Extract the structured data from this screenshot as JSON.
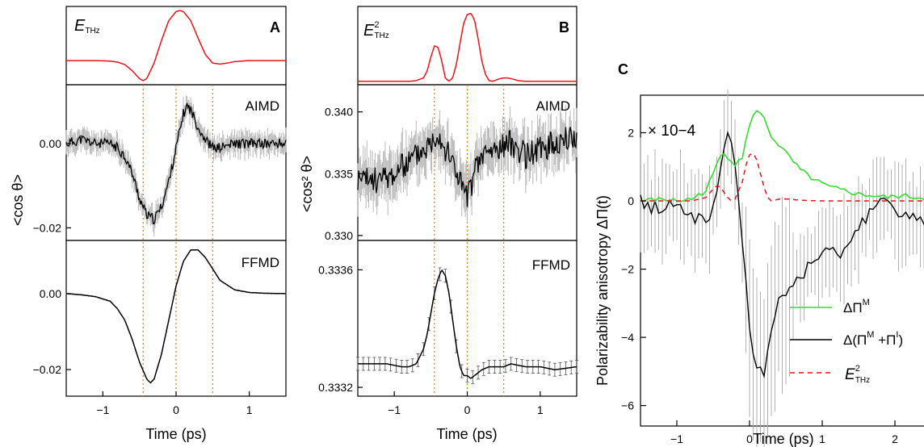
{
  "chart_data": [
    {
      "panel": "A",
      "type": "line",
      "xlabel": "Time (ps)",
      "ylabel": "<cos θ>",
      "xlim": [
        -1.5,
        1.5
      ],
      "xticks": [
        -1,
        0,
        1
      ],
      "xtick_labels": [
        "−1",
        "0",
        "1"
      ],
      "marker_lines": [
        -0.45,
        0.0,
        0.5
      ],
      "subplots": [
        {
          "name": "E_THz",
          "label_main": "E",
          "label_sub": "THz",
          "color": "#e8141a",
          "ylim": [
            -0.45,
            1.05
          ],
          "x": [
            -1.5,
            -1.3,
            -1.1,
            -0.9,
            -0.8,
            -0.7,
            -0.6,
            -0.5,
            -0.45,
            -0.4,
            -0.3,
            -0.2,
            -0.1,
            0.0,
            0.05,
            0.1,
            0.2,
            0.3,
            0.4,
            0.5,
            0.6,
            0.7,
            0.8,
            0.9,
            1.0,
            1.2,
            1.5
          ],
          "y": [
            0,
            0,
            0,
            -0.01,
            -0.03,
            -0.08,
            -0.2,
            -0.36,
            -0.4,
            -0.36,
            -0.05,
            0.4,
            0.8,
            0.98,
            1.0,
            0.98,
            0.8,
            0.45,
            0.12,
            -0.05,
            -0.07,
            -0.05,
            -0.02,
            -0.01,
            0,
            0,
            0
          ]
        },
        {
          "name": "AIMD",
          "ylim": [
            -0.023,
            0.014
          ],
          "yticks": [
            -0.02,
            0.0
          ],
          "ytick_labels": [
            "−0.02",
            "0.00"
          ],
          "x": [
            -1.5,
            -1.3,
            -1.1,
            -0.9,
            -0.8,
            -0.7,
            -0.6,
            -0.5,
            -0.4,
            -0.3,
            -0.2,
            -0.1,
            0.0,
            0.1,
            0.15,
            0.2,
            0.3,
            0.4,
            0.5,
            0.6,
            0.8,
            1.0,
            1.2,
            1.5
          ],
          "y": [
            0.0,
            0.001,
            0.0,
            0.0,
            -0.001,
            -0.003,
            -0.007,
            -0.013,
            -0.017,
            -0.018,
            -0.015,
            -0.009,
            -0.001,
            0.007,
            0.009,
            0.008,
            0.004,
            0.001,
            -0.001,
            -0.001,
            0.0,
            0.0,
            0.0,
            0.0
          ]
        },
        {
          "name": "FFMD",
          "ylim": [
            -0.027,
            0.014
          ],
          "yticks": [
            -0.02,
            0.0
          ],
          "ytick_labels": [
            "−0.02",
            "0.00"
          ],
          "x": [
            -1.5,
            -1.3,
            -1.1,
            -0.9,
            -0.8,
            -0.7,
            -0.6,
            -0.5,
            -0.4,
            -0.35,
            -0.3,
            -0.2,
            -0.1,
            0.0,
            0.1,
            0.2,
            0.3,
            0.4,
            0.5,
            0.6,
            0.8,
            1.0,
            1.2,
            1.5
          ],
          "y": [
            0.0,
            -0.0003,
            -0.0008,
            -0.002,
            -0.004,
            -0.007,
            -0.012,
            -0.018,
            -0.0225,
            -0.0235,
            -0.0225,
            -0.016,
            -0.007,
            0.002,
            0.0085,
            0.0115,
            0.0115,
            0.0095,
            0.0065,
            0.0035,
            0.001,
            0.0003,
            0.0001,
            0.0
          ]
        }
      ]
    },
    {
      "panel": "B",
      "type": "line",
      "xlabel": "Time (ps)",
      "ylabel": "<cos² θ>",
      "xlim": [
        -1.5,
        1.5
      ],
      "xticks": [
        -1,
        0,
        1
      ],
      "xtick_labels": [
        "−1",
        "0",
        "1"
      ],
      "marker_lines": [
        -0.45,
        0.0,
        0.5
      ],
      "subplots": [
        {
          "name": "E²_THz",
          "label_main": "E",
          "label_sup": "2",
          "label_sub": "THz",
          "color": "#e8141a",
          "ylim": [
            -0.05,
            1.1
          ],
          "x": [
            -1.5,
            -1.0,
            -0.8,
            -0.7,
            -0.6,
            -0.55,
            -0.5,
            -0.45,
            -0.4,
            -0.35,
            -0.3,
            -0.25,
            -0.2,
            -0.15,
            -0.1,
            -0.05,
            0.0,
            0.05,
            0.1,
            0.15,
            0.2,
            0.25,
            0.3,
            0.35,
            0.4,
            0.45,
            0.5,
            0.55,
            0.6,
            0.7,
            0.8,
            1.0,
            1.5
          ],
          "y": [
            0,
            0,
            0,
            0.01,
            0.05,
            0.15,
            0.35,
            0.52,
            0.5,
            0.3,
            0.05,
            0.0,
            0.05,
            0.25,
            0.55,
            0.85,
            0.98,
            1.0,
            0.9,
            0.62,
            0.3,
            0.1,
            0.01,
            0.0,
            0.02,
            0.04,
            0.05,
            0.05,
            0.04,
            0.01,
            0.0,
            0.0,
            0.0
          ]
        },
        {
          "name": "AIMD",
          "ylim": [
            0.3296,
            0.3422
          ],
          "yticks": [
            0.33,
            0.335,
            0.34
          ],
          "ytick_labels": [
            "0.330",
            "0.335",
            "0.340"
          ],
          "x": [
            -1.5,
            -1.2,
            -1.0,
            -0.8,
            -0.6,
            -0.5,
            -0.4,
            -0.3,
            -0.2,
            -0.1,
            0.0,
            0.1,
            0.2,
            0.4,
            0.6,
            0.8,
            1.0,
            1.2,
            1.5
          ],
          "y": [
            0.3345,
            0.3345,
            0.335,
            0.336,
            0.337,
            0.3375,
            0.3385,
            0.337,
            0.336,
            0.3345,
            0.333,
            0.335,
            0.3365,
            0.337,
            0.3375,
            0.3365,
            0.337,
            0.3375,
            0.338
          ]
        },
        {
          "name": "FFMD",
          "ylim": [
            0.33317,
            0.3337
          ],
          "yticks": [
            0.3332,
            0.3336
          ],
          "ytick_labels": [
            "0.3332",
            "0.3336"
          ],
          "x": [
            -1.5,
            -1.3,
            -1.1,
            -0.9,
            -0.8,
            -0.7,
            -0.6,
            -0.55,
            -0.5,
            -0.45,
            -0.4,
            -0.35,
            -0.3,
            -0.25,
            -0.2,
            -0.15,
            -0.1,
            -0.05,
            0.0,
            0.05,
            0.1,
            0.2,
            0.3,
            0.4,
            0.5,
            0.6,
            0.8,
            1.0,
            1.2,
            1.5
          ],
          "y": [
            0.33328,
            0.33328,
            0.33328,
            0.33327,
            0.33327,
            0.33328,
            0.33333,
            0.33338,
            0.33345,
            0.33352,
            0.33357,
            0.3336,
            0.33358,
            0.33352,
            0.33343,
            0.33334,
            0.33327,
            0.33324,
            0.33324,
            0.33323,
            0.33324,
            0.33326,
            0.33327,
            0.33327,
            0.33327,
            0.33328,
            0.33327,
            0.33327,
            0.33326,
            0.33327
          ]
        }
      ]
    },
    {
      "panel": "C",
      "type": "line",
      "xlabel": "Time (ps)",
      "ylabel": "Polarizability anisotropy ΔΠ(t)",
      "scale_note": "× 10−4",
      "xlim": [
        -1.5,
        2.5
      ],
      "ylim": [
        -6.6,
        3.1
      ],
      "xticks": [
        -1,
        0,
        1,
        2
      ],
      "xtick_labels": [
        "−1",
        "0",
        "1",
        "2"
      ],
      "yticks": [
        -6,
        -4,
        -2,
        0,
        2
      ],
      "ytick_labels": [
        "−6",
        "−4",
        "−2",
        "0",
        "2"
      ],
      "series": [
        {
          "name": "ΔΠ^M",
          "legend_main": "ΔΠ",
          "legend_sup": "M",
          "color": "#39d933",
          "x": [
            -1.5,
            -1.2,
            -1.0,
            -0.8,
            -0.6,
            -0.5,
            -0.4,
            -0.35,
            -0.3,
            -0.2,
            -0.1,
            0.0,
            0.1,
            0.2,
            0.3,
            0.5,
            0.7,
            0.9,
            1.1,
            1.3,
            1.5,
            1.7,
            1.9,
            2.1,
            2.3,
            2.5
          ],
          "y": [
            0.0,
            0.05,
            0.0,
            0.05,
            0.3,
            0.8,
            1.3,
            1.4,
            1.3,
            1.1,
            1.3,
            2.2,
            2.7,
            2.4,
            1.9,
            1.4,
            0.9,
            0.6,
            0.4,
            0.3,
            0.2,
            0.15,
            0.1,
            0.15,
            0.1,
            0.1
          ]
        },
        {
          "name": "Δ(Π^M + Π^I)",
          "legend_main": "Δ(Π",
          "legend_sup1": "M",
          "legend_mid": " +Π",
          "legend_sup2": "I",
          "legend_end": ")",
          "color": "#000000",
          "x": [
            -1.5,
            -1.3,
            -1.1,
            -0.9,
            -0.7,
            -0.5,
            -0.4,
            -0.3,
            -0.25,
            -0.2,
            -0.1,
            0.0,
            0.1,
            0.2,
            0.3,
            0.4,
            0.6,
            0.8,
            1.0,
            1.2,
            1.4,
            1.5,
            1.6,
            1.7,
            1.8,
            2.0,
            2.2,
            2.4,
            2.5
          ],
          "y": [
            0.0,
            -0.2,
            -0.1,
            -0.3,
            -0.5,
            -0.3,
            0.8,
            1.8,
            1.9,
            1.2,
            -1.2,
            -3.8,
            -4.8,
            -5.1,
            -4.0,
            -3.0,
            -2.4,
            -2.0,
            -1.6,
            -1.5,
            -1.2,
            -0.8,
            -0.5,
            0.0,
            0.2,
            -0.4,
            -0.6,
            -0.5,
            -0.4
          ]
        },
        {
          "name": "E²_THz",
          "legend_main": "E",
          "legend_sup": "2",
          "legend_sub": "THz",
          "color": "#e8141a",
          "dashed": true,
          "x": [
            -1.5,
            -1.0,
            -0.8,
            -0.6,
            -0.5,
            -0.45,
            -0.4,
            -0.3,
            -0.25,
            -0.2,
            -0.1,
            -0.05,
            0.0,
            0.05,
            0.1,
            0.2,
            0.25,
            0.3,
            0.4,
            0.5,
            0.7,
            1.0,
            1.5,
            2.0,
            2.5
          ],
          "y": [
            0.0,
            0.0,
            0.0,
            0.1,
            0.35,
            0.45,
            0.4,
            0.1,
            0.0,
            0.05,
            0.55,
            1.05,
            1.35,
            1.4,
            1.2,
            0.4,
            0.1,
            0.0,
            0.05,
            0.06,
            0.02,
            0.0,
            0.0,
            0.0,
            0.0
          ]
        }
      ]
    }
  ]
}
